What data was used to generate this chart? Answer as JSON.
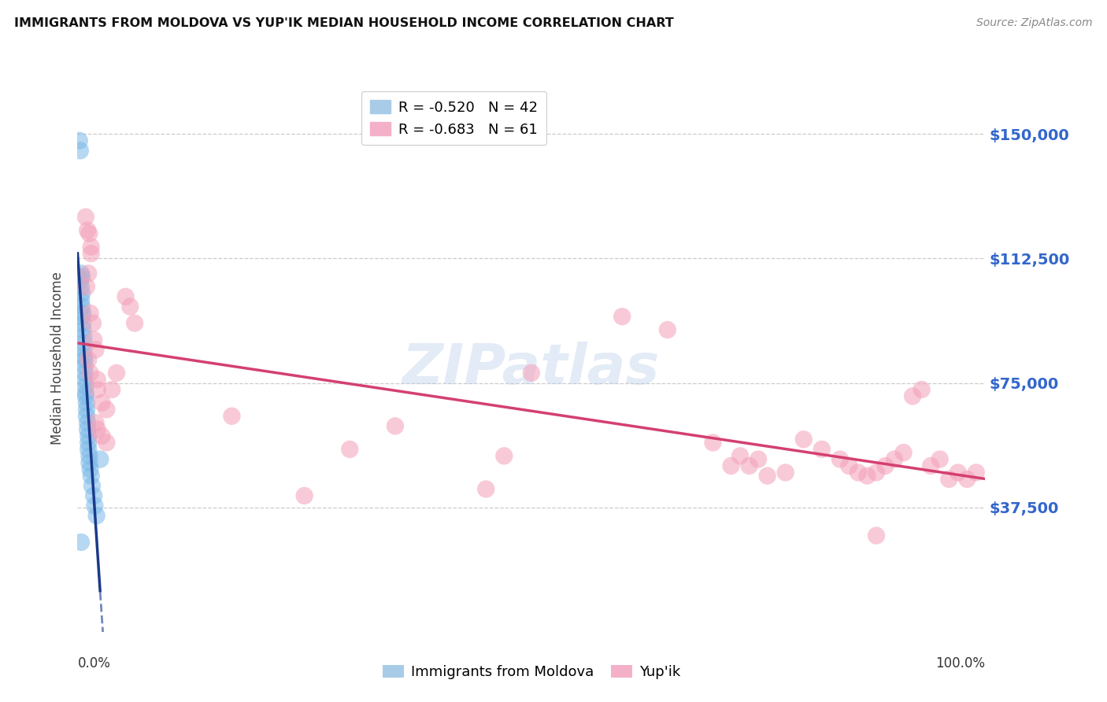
{
  "title": "IMMIGRANTS FROM MOLDOVA VS YUP'IK MEDIAN HOUSEHOLD INCOME CORRELATION CHART",
  "source": "Source: ZipAtlas.com",
  "ylabel": "Median Household Income",
  "ylim": [
    0,
    165000
  ],
  "xlim": [
    0,
    1.0
  ],
  "ytick_vals": [
    37500,
    75000,
    112500,
    150000
  ],
  "ytick_labels": [
    "$37,500",
    "$75,000",
    "$112,500",
    "$150,000"
  ],
  "watermark": "ZIPatlas",
  "moldova_color": "#7ab8e8",
  "yupik_color": "#f4a0b8",
  "moldova_line_color": "#1a3a8a",
  "yupik_line_color": "#d44070",
  "moldova_points": [
    [
      0.002,
      148000
    ],
    [
      0.003,
      145000
    ],
    [
      0.004,
      108000
    ],
    [
      0.005,
      107000
    ],
    [
      0.003,
      106000
    ],
    [
      0.004,
      104000
    ],
    [
      0.005,
      102000
    ],
    [
      0.004,
      100000
    ],
    [
      0.005,
      98000
    ],
    [
      0.006,
      96000
    ],
    [
      0.005,
      95000
    ],
    [
      0.006,
      93000
    ],
    [
      0.006,
      91000
    ],
    [
      0.007,
      89000
    ],
    [
      0.007,
      87000
    ],
    [
      0.007,
      85000
    ],
    [
      0.007,
      83000
    ],
    [
      0.008,
      82000
    ],
    [
      0.008,
      80000
    ],
    [
      0.008,
      78000
    ],
    [
      0.008,
      76000
    ],
    [
      0.009,
      74000
    ],
    [
      0.009,
      72000
    ],
    [
      0.009,
      71000
    ],
    [
      0.01,
      69000
    ],
    [
      0.01,
      67000
    ],
    [
      0.01,
      65000
    ],
    [
      0.011,
      63000
    ],
    [
      0.011,
      61000
    ],
    [
      0.012,
      59000
    ],
    [
      0.012,
      57000
    ],
    [
      0.012,
      55000
    ],
    [
      0.013,
      53000
    ],
    [
      0.013,
      51000
    ],
    [
      0.014,
      49000
    ],
    [
      0.015,
      47000
    ],
    [
      0.016,
      44000
    ],
    [
      0.018,
      41000
    ],
    [
      0.019,
      38000
    ],
    [
      0.004,
      27000
    ],
    [
      0.025,
      52000
    ],
    [
      0.021,
      35000
    ]
  ],
  "yupik_points": [
    [
      0.009,
      125000
    ],
    [
      0.011,
      121000
    ],
    [
      0.013,
      120000
    ],
    [
      0.015,
      116000
    ],
    [
      0.015,
      114000
    ],
    [
      0.012,
      108000
    ],
    [
      0.01,
      104000
    ],
    [
      0.014,
      96000
    ],
    [
      0.017,
      93000
    ],
    [
      0.018,
      88000
    ],
    [
      0.02,
      85000
    ],
    [
      0.012,
      82000
    ],
    [
      0.014,
      78000
    ],
    [
      0.022,
      76000
    ],
    [
      0.022,
      73000
    ],
    [
      0.027,
      69000
    ],
    [
      0.032,
      67000
    ],
    [
      0.02,
      63000
    ],
    [
      0.022,
      61000
    ],
    [
      0.027,
      59000
    ],
    [
      0.032,
      57000
    ],
    [
      0.038,
      73000
    ],
    [
      0.043,
      78000
    ],
    [
      0.053,
      101000
    ],
    [
      0.058,
      98000
    ],
    [
      0.063,
      93000
    ],
    [
      0.5,
      78000
    ],
    [
      0.6,
      95000
    ],
    [
      0.65,
      91000
    ],
    [
      0.17,
      65000
    ],
    [
      0.25,
      41000
    ],
    [
      0.3,
      55000
    ],
    [
      0.35,
      62000
    ],
    [
      0.45,
      43000
    ],
    [
      0.47,
      53000
    ],
    [
      0.7,
      57000
    ],
    [
      0.72,
      50000
    ],
    [
      0.73,
      53000
    ],
    [
      0.74,
      50000
    ],
    [
      0.75,
      52000
    ],
    [
      0.76,
      47000
    ],
    [
      0.78,
      48000
    ],
    [
      0.8,
      58000
    ],
    [
      0.82,
      55000
    ],
    [
      0.84,
      52000
    ],
    [
      0.85,
      50000
    ],
    [
      0.86,
      48000
    ],
    [
      0.87,
      47000
    ],
    [
      0.88,
      48000
    ],
    [
      0.89,
      50000
    ],
    [
      0.9,
      52000
    ],
    [
      0.91,
      54000
    ],
    [
      0.92,
      71000
    ],
    [
      0.93,
      73000
    ],
    [
      0.94,
      50000
    ],
    [
      0.95,
      52000
    ],
    [
      0.96,
      46000
    ],
    [
      0.97,
      48000
    ],
    [
      0.98,
      46000
    ],
    [
      0.99,
      48000
    ],
    [
      0.88,
      29000
    ]
  ]
}
